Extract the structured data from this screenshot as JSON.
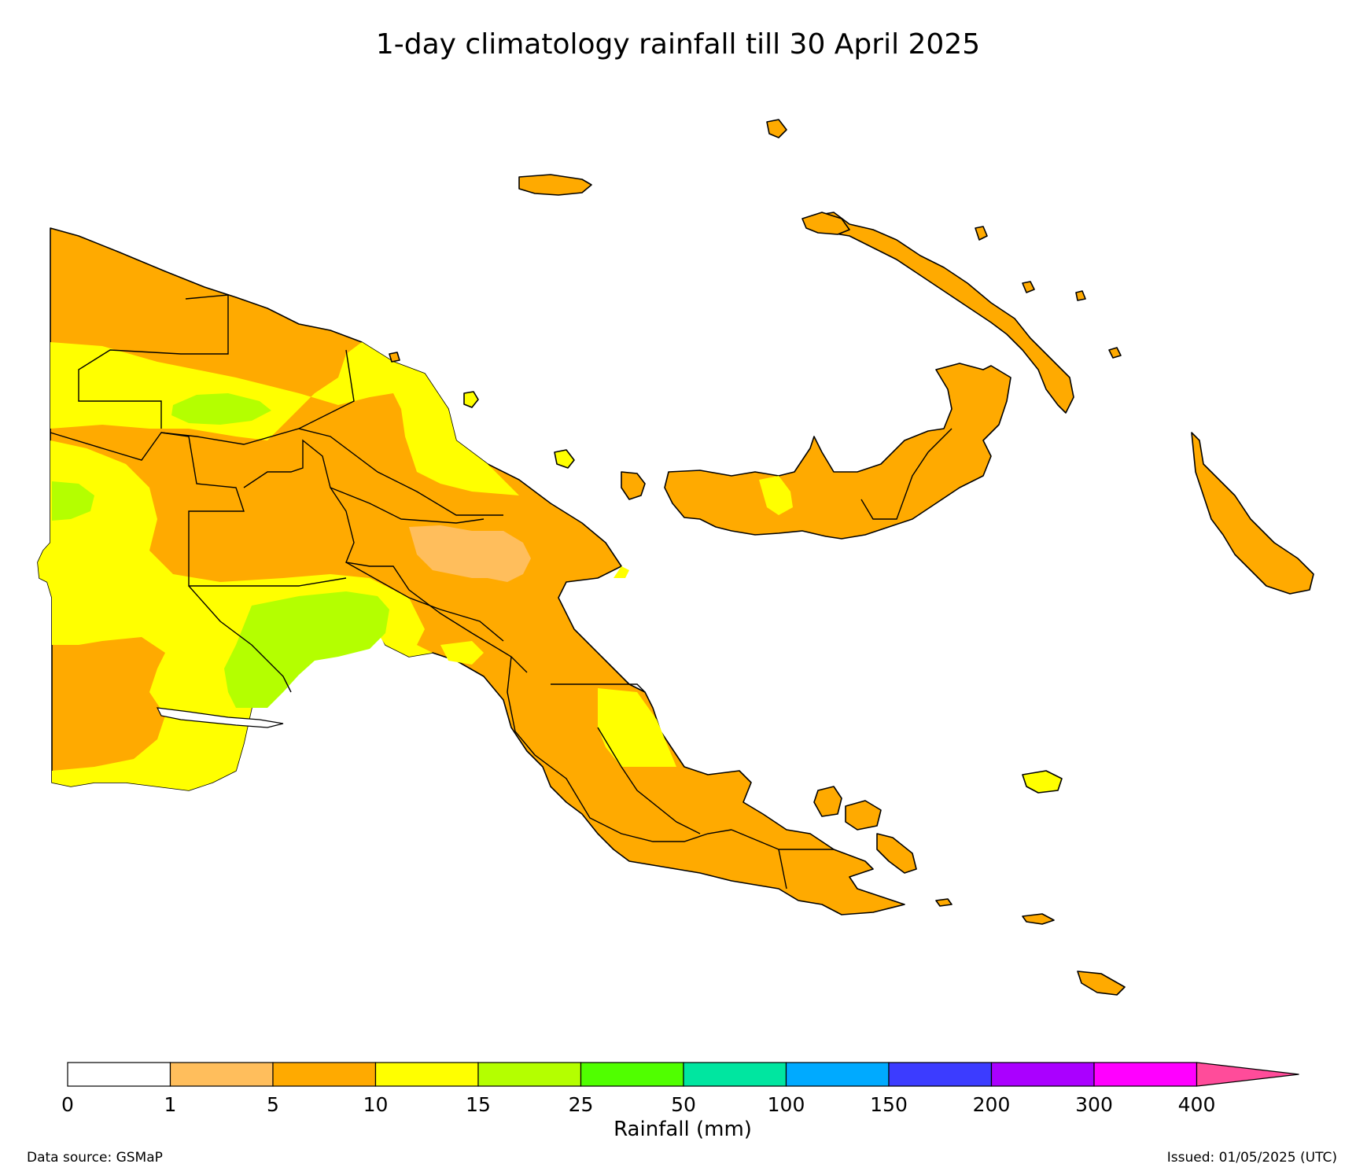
{
  "title": "1-day climatology rainfall till 30 April 2025",
  "colorbar": {
    "label": "Rainfall (mm)",
    "ticks": [
      "0",
      "1",
      "5",
      "10",
      "15",
      "25",
      "50",
      "100",
      "150",
      "200",
      "300",
      "400"
    ],
    "colors": [
      "#ffffff",
      "#ffbe5c",
      "#ffaa00",
      "#ffff00",
      "#b4ff00",
      "#50ff00",
      "#00e6a0",
      "#00aaff",
      "#3c3cff",
      "#aa00ff",
      "#ff00ff"
    ],
    "extend_color": "#ff4c9a"
  },
  "footer": {
    "source": "Data source: GSMaP",
    "issued": "Issued: 01/05/2025 (UTC)"
  }
}
